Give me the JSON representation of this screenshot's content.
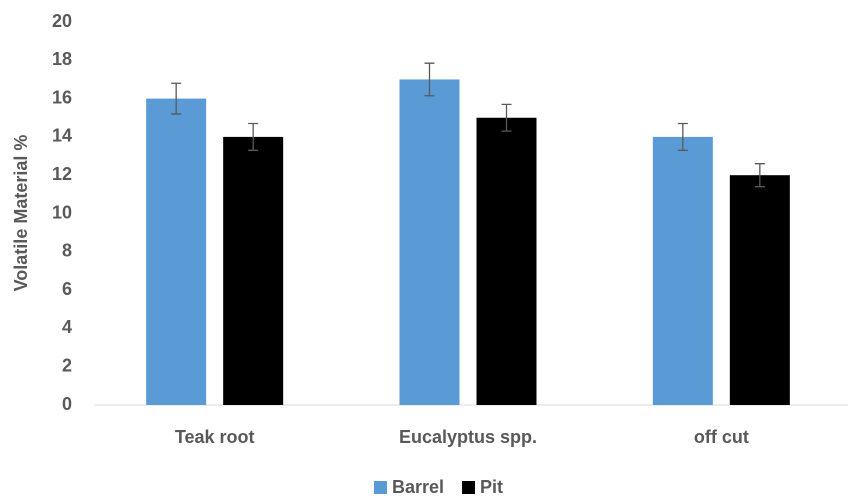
{
  "chart_data": {
    "type": "bar",
    "y_label": "Volatile Material %",
    "categories": [
      "Teak root",
      "Eucalyptus spp.",
      "off cut"
    ],
    "series": [
      {
        "name": "Barrel",
        "color": "#5b9bd5",
        "values": [
          16,
          17,
          14
        ],
        "errors": [
          0.8,
          0.85,
          0.7
        ]
      },
      {
        "name": "Pit",
        "color": "#000000",
        "values": [
          14,
          15,
          12
        ],
        "errors": [
          0.7,
          0.7,
          0.6
        ]
      }
    ],
    "ylim": [
      0,
      20
    ],
    "yticks": [
      0,
      2,
      4,
      6,
      8,
      10,
      12,
      14,
      16,
      18,
      20
    ],
    "grid": false,
    "legend": "bottom"
  }
}
